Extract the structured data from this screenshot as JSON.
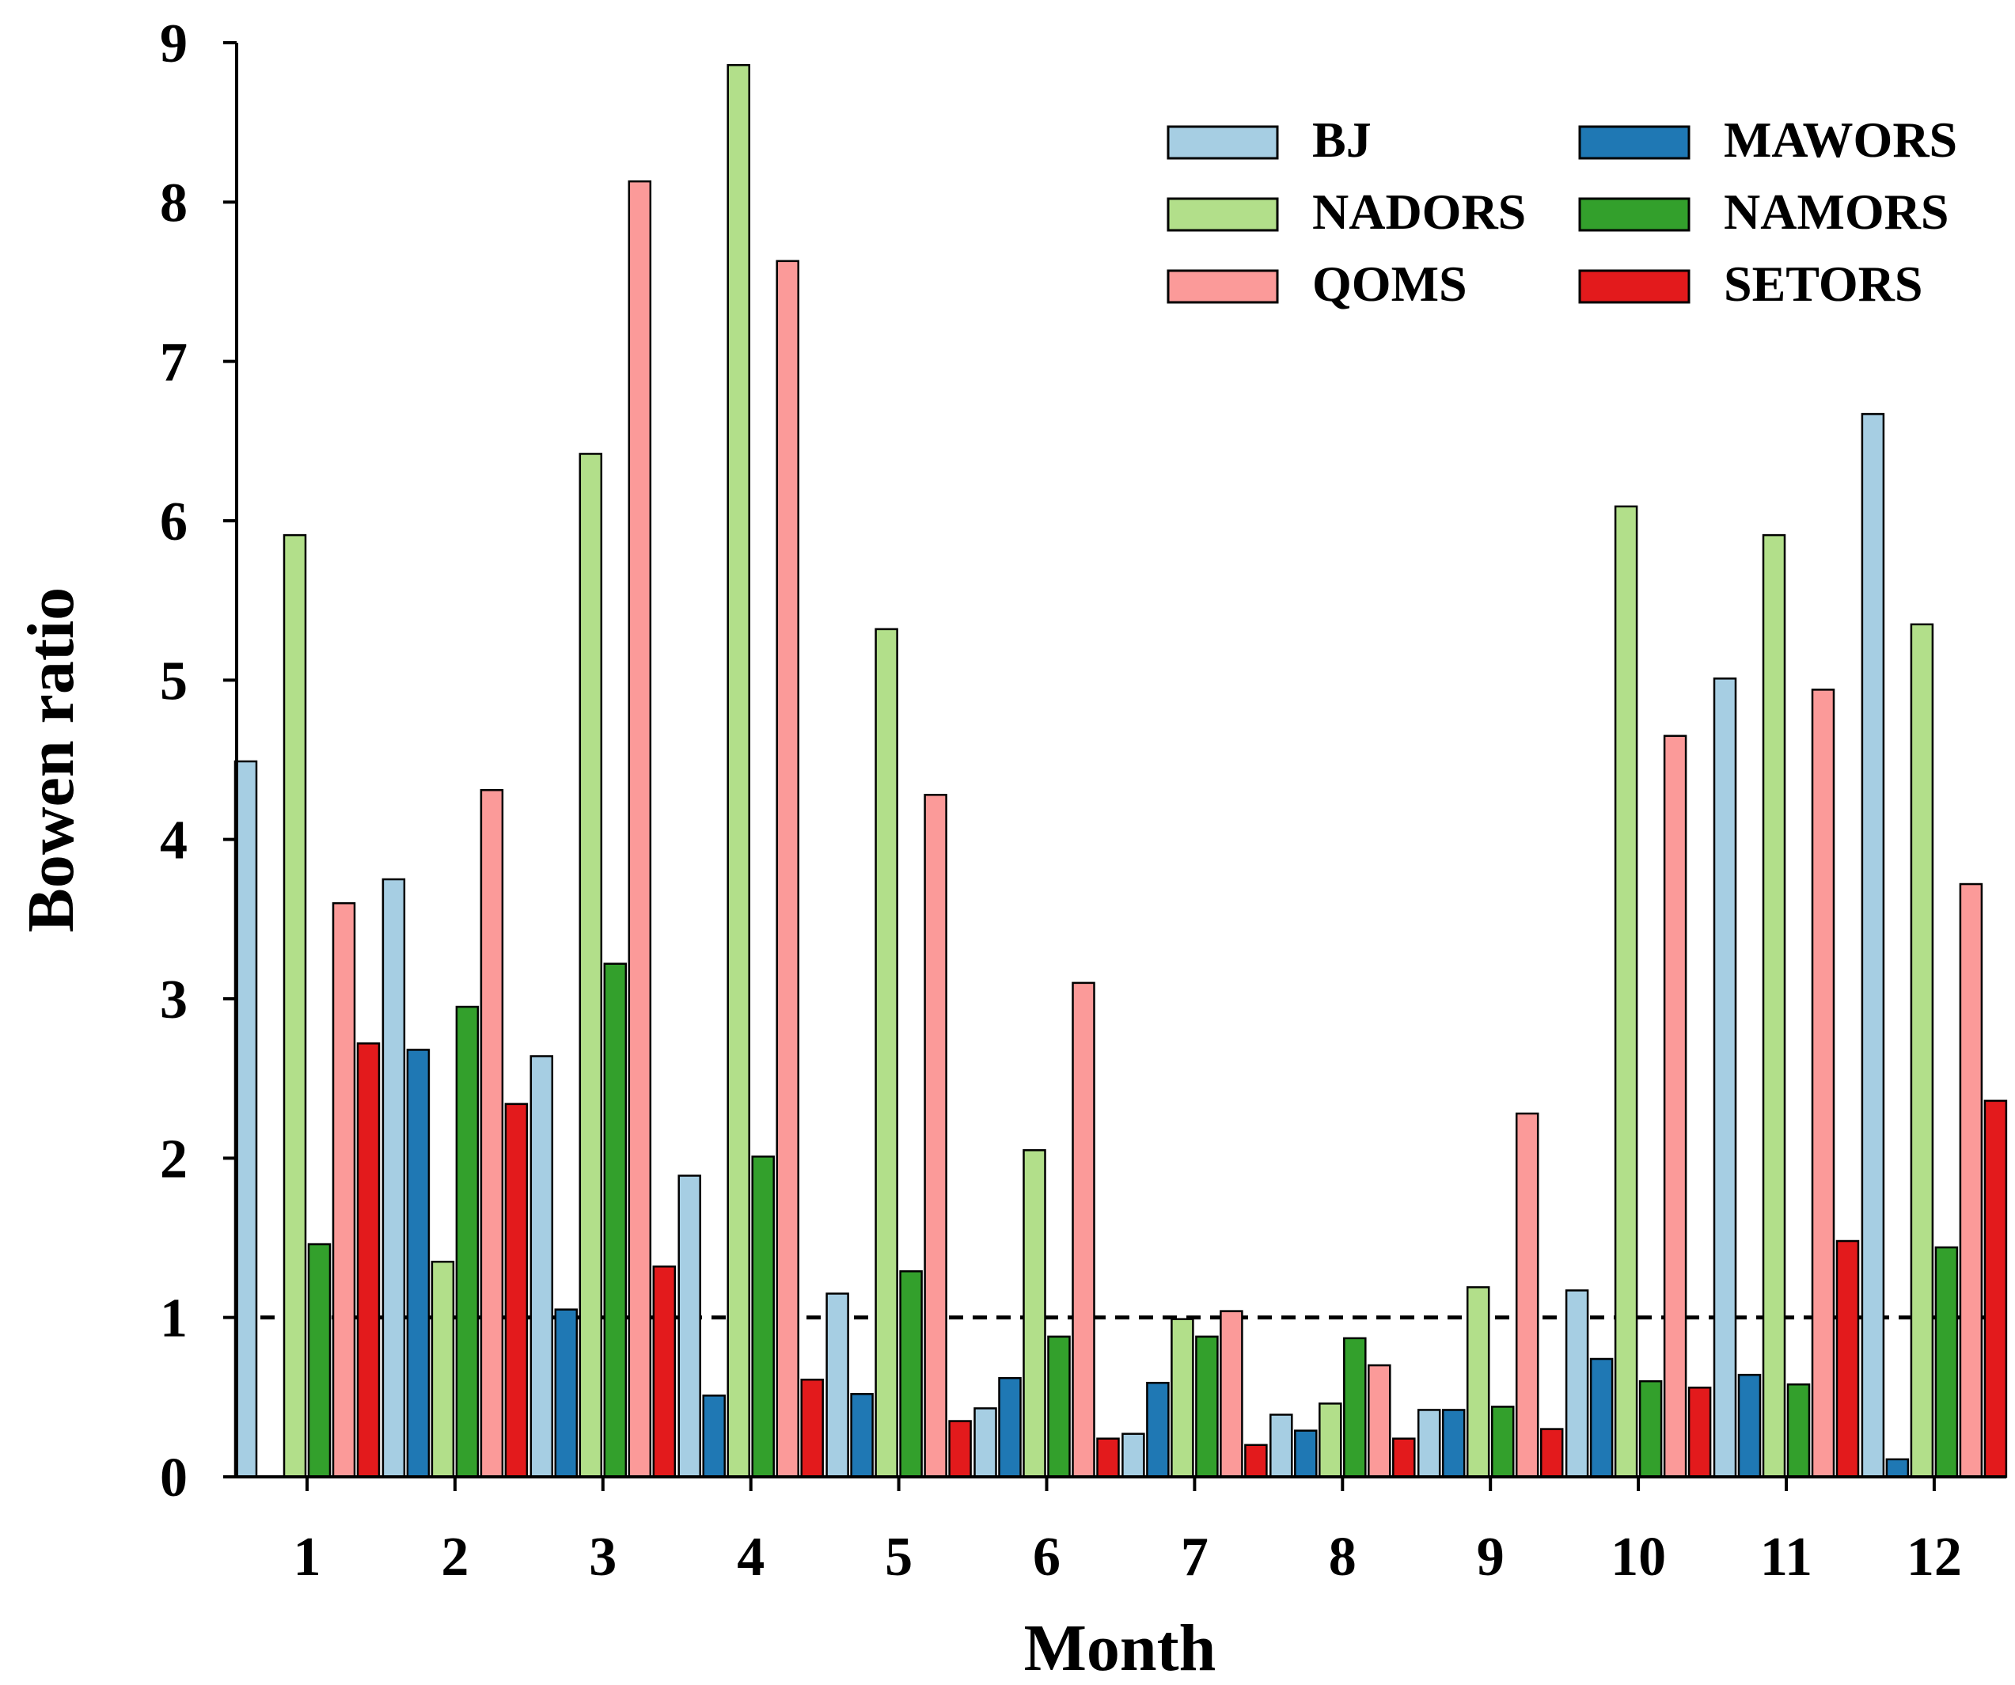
{
  "chart_data": {
    "type": "bar",
    "title": "",
    "xlabel": "Month",
    "ylabel": "Bowen ratio",
    "categories": [
      "1",
      "2",
      "3",
      "4",
      "5",
      "6",
      "7",
      "8",
      "9",
      "10",
      "11",
      "12"
    ],
    "ylim": [
      0,
      9
    ],
    "yticks": [
      "0",
      "1",
      "2",
      "3",
      "4",
      "5",
      "6",
      "7",
      "8",
      "9"
    ],
    "reference_line": {
      "y": 1,
      "style": "dashed"
    },
    "legend_position": "top-right",
    "series": [
      {
        "name": "BJ",
        "color": "#a6cee3",
        "values": [
          4.49,
          3.75,
          2.64,
          1.89,
          1.15,
          0.43,
          0.27,
          0.39,
          0.42,
          1.17,
          5.01,
          6.67
        ]
      },
      {
        "name": "MAWORS",
        "color": "#1f78b4",
        "values": [
          0.0,
          2.68,
          1.05,
          0.51,
          0.52,
          0.62,
          0.59,
          0.29,
          0.42,
          0.74,
          0.64,
          0.11
        ]
      },
      {
        "name": "NADORS",
        "color": "#b2df8a",
        "values": [
          5.91,
          1.35,
          6.42,
          8.86,
          5.32,
          2.05,
          0.99,
          0.46,
          1.19,
          6.09,
          5.91,
          5.35
        ]
      },
      {
        "name": "NAMORS",
        "color": "#33a02c",
        "values": [
          1.46,
          2.95,
          3.22,
          2.01,
          1.29,
          0.88,
          0.88,
          0.87,
          0.44,
          0.6,
          0.58,
          1.44
        ]
      },
      {
        "name": "QOMS",
        "color": "#fb9a99",
        "values": [
          3.6,
          4.31,
          8.13,
          7.63,
          4.28,
          3.1,
          1.04,
          0.7,
          2.28,
          4.65,
          4.94,
          3.72
        ]
      },
      {
        "name": "SETORS",
        "color": "#e31a1c",
        "values": [
          2.72,
          2.34,
          1.32,
          0.61,
          0.35,
          0.24,
          0.2,
          0.24,
          0.3,
          0.56,
          1.48,
          2.36
        ]
      }
    ],
    "legend_order": [
      "BJ",
      "MAWORS",
      "NADORS",
      "NAMORS",
      "QOMS",
      "SETORS"
    ]
  }
}
